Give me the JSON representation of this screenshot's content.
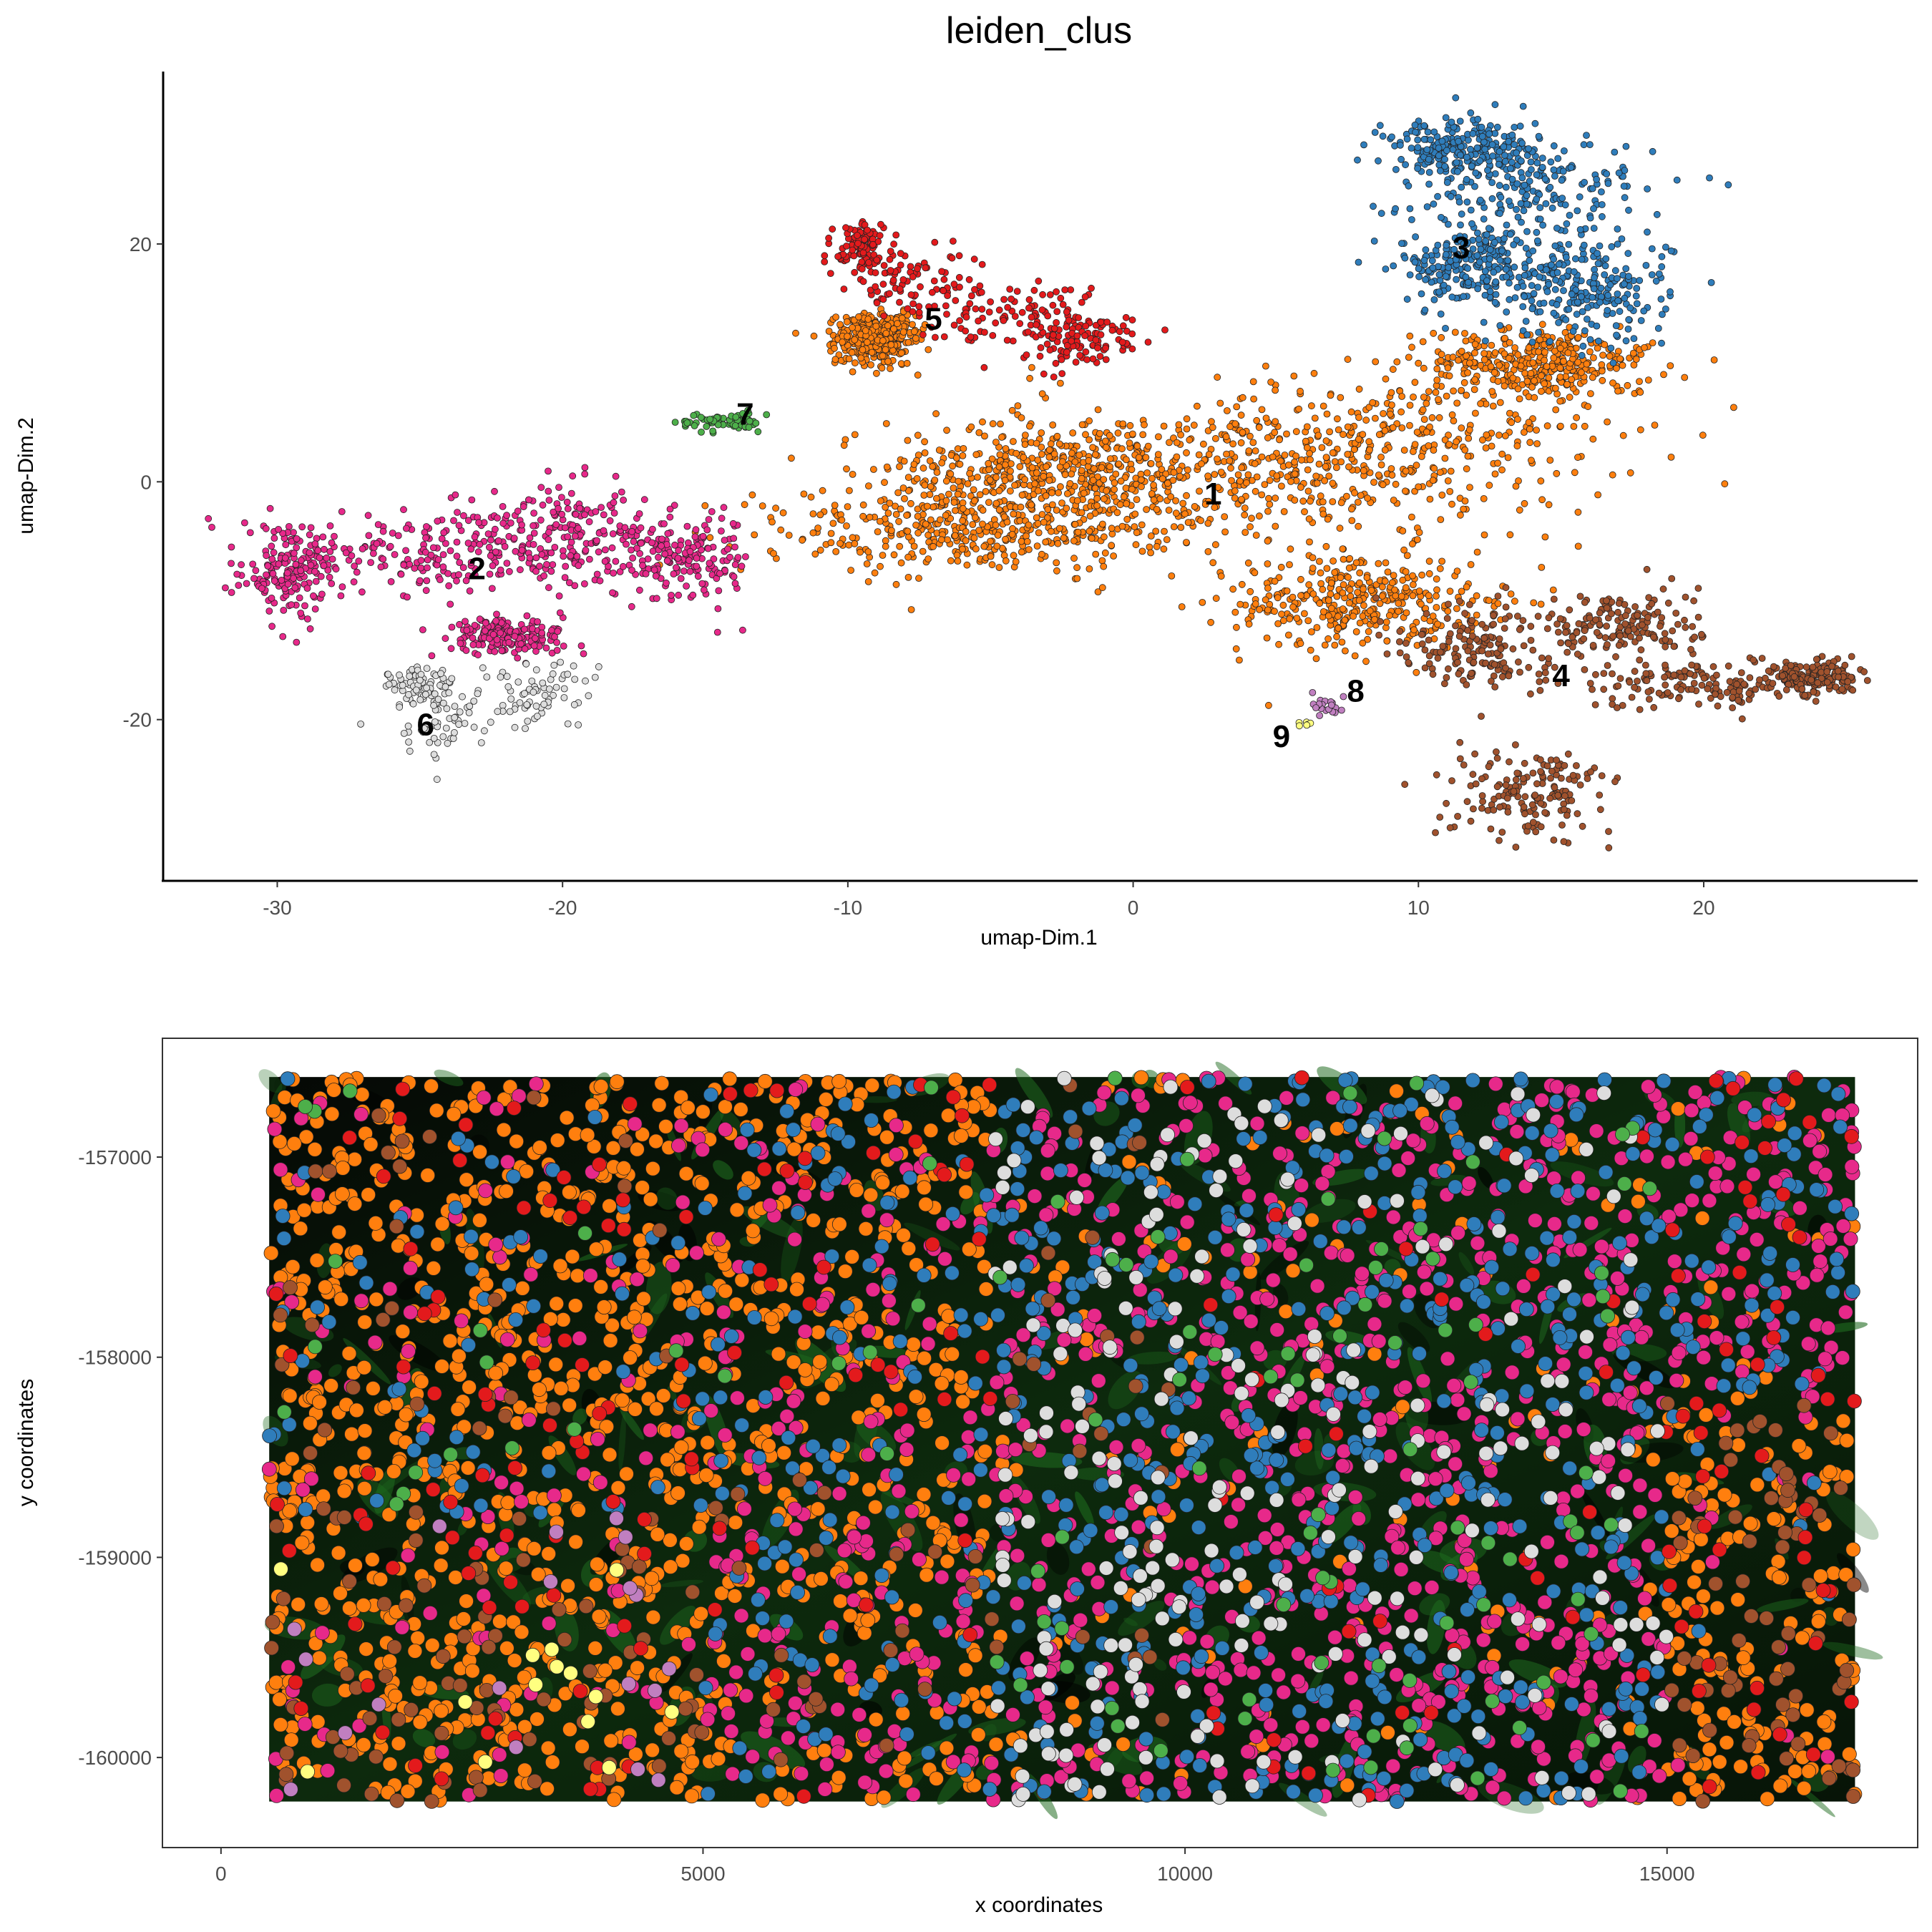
{
  "title": "leiden_clus",
  "colors": {
    "1": "#ff7f0e",
    "2": "#e7298a",
    "3": "#2f7dbb",
    "4": "#a0522d",
    "5": "#e31a1c",
    "6": "#dddddd",
    "7": "#4daf4a",
    "8": "#c07fc0",
    "9": "#ffff80"
  },
  "chart_data": [
    {
      "type": "scatter",
      "panel": "umap",
      "xlabel": "umap-Dim.1",
      "ylabel": "umap-Dim.2",
      "xlim": [
        -34,
        27.5
      ],
      "ylim": [
        -33.5,
        34.5
      ],
      "xticks": [
        -30,
        -20,
        -10,
        0,
        10,
        20
      ],
      "yticks": [
        -20,
        0,
        20
      ],
      "clusters": [
        {
          "id": "1",
          "label": "1",
          "label_pos": [
            2.8,
            -1.2
          ],
          "point_count": 2600,
          "blobs": [
            [
              2,
              0,
              7,
              5
            ],
            [
              9,
              3,
              6,
              4
            ],
            [
              -3,
              1,
              4,
              3
            ],
            [
              -6,
              -4,
              5,
              2.5
            ],
            [
              8,
              -10,
              3,
              3
            ],
            [
              14,
              10,
              3,
              2
            ],
            [
              -9,
              12,
              1,
              1.5
            ]
          ]
        },
        {
          "id": "2",
          "label": "2",
          "label_pos": [
            -23,
            -7.5
          ],
          "point_count": 900,
          "blobs": [
            [
              -29.5,
              -7.5,
              1.2,
              2.5
            ],
            [
              -24,
              -6,
              4,
              2.5
            ],
            [
              -20,
              -4,
              3,
              2.5
            ],
            [
              -16,
              -6.5,
              2,
              2.5
            ],
            [
              -22,
              -13,
              1.5,
              1
            ]
          ]
        },
        {
          "id": "3",
          "label": "3",
          "label_pos": [
            11.5,
            19.5
          ],
          "point_count": 900,
          "blobs": [
            [
              14,
              24,
              3,
              4
            ],
            [
              16,
              16,
              2,
              3
            ],
            [
              11.5,
              28,
              2,
              2
            ],
            [
              12,
              18,
              2,
              2
            ]
          ]
        },
        {
          "id": "4",
          "label": "4",
          "label_pos": [
            15,
            -16.5
          ],
          "point_count": 800,
          "blobs": [
            [
              12,
              -14,
              2,
              3
            ],
            [
              14,
              -26,
              2,
              2.5
            ],
            [
              20,
              -17,
              3,
              1.5
            ],
            [
              24,
              -16.5,
              1,
              1
            ],
            [
              17,
              -12,
              2,
              2
            ]
          ]
        },
        {
          "id": "5",
          "label": "5",
          "label_pos": [
            -7,
            13.5
          ],
          "point_count": 400,
          "blobs": [
            [
              -8,
              17,
              2,
              2
            ],
            [
              -4,
              14,
              2.5,
              2
            ],
            [
              -9.5,
              20,
              0.6,
              1.5
            ],
            [
              -2,
              12,
              1.5,
              1.5
            ]
          ]
        },
        {
          "id": "6",
          "label": "6",
          "label_pos": [
            -24.8,
            -20.6
          ],
          "point_count": 200,
          "blobs": [
            [
              -24,
              -20,
              1.5,
              3
            ],
            [
              -21,
              -18,
              1.5,
              2
            ],
            [
              -25,
              -17,
              0.8,
              1
            ]
          ]
        },
        {
          "id": "7",
          "label": "7",
          "label_pos": [
            -13.6,
            5.5
          ],
          "point_count": 70,
          "blobs": [
            [
              -14.5,
              5.0,
              1.0,
              0.6
            ]
          ]
        },
        {
          "id": "8",
          "label": "8",
          "label_pos": [
            7.8,
            -17.8
          ],
          "point_count": 20,
          "blobs": [
            [
              6.8,
              -18.8,
              0.5,
              0.6
            ]
          ]
        },
        {
          "id": "9",
          "label": "9",
          "label_pos": [
            5.2,
            -21.6
          ],
          "point_count": 6,
          "blobs": [
            [
              6.0,
              -20.4,
              0.25,
              0.2
            ]
          ]
        }
      ]
    },
    {
      "type": "scatter",
      "panel": "spatial",
      "xlabel": "x coordinates",
      "ylabel": "y coordinates",
      "xlim": [
        -600,
        17600
      ],
      "ylim": [
        -160450,
        -156410
      ],
      "xticks": [
        0,
        5000,
        10000,
        15000
      ],
      "yticks": [
        -157000,
        -158000,
        -159000,
        -160000
      ],
      "image_extent": {
        "x": [
          500,
          16950
        ],
        "y": [
          -160220,
          -156600
        ]
      },
      "point_count": 4200,
      "regions": [
        {
          "x": [
            500,
            5000
          ],
          "y": [
            -158800,
            -156600
          ],
          "mix": {
            "1": 0.65,
            "2": 0.1,
            "3": 0.1,
            "4": 0.05,
            "5": 0.07,
            "7": 0.03
          }
        },
        {
          "x": [
            500,
            5000
          ],
          "y": [
            -160220,
            -158800
          ],
          "mix": {
            "1": 0.6,
            "4": 0.2,
            "2": 0.08,
            "5": 0.06,
            "9": 0.03,
            "8": 0.03
          }
        },
        {
          "x": [
            5000,
            8000
          ],
          "y": [
            -158500,
            -156600
          ],
          "mix": {
            "1": 0.55,
            "2": 0.2,
            "3": 0.15,
            "5": 0.07,
            "7": 0.03
          }
        },
        {
          "x": [
            5000,
            8000
          ],
          "y": [
            -160220,
            -158500
          ],
          "mix": {
            "1": 0.45,
            "2": 0.3,
            "3": 0.15,
            "4": 0.07,
            "5": 0.03
          }
        },
        {
          "x": [
            8000,
            10000
          ],
          "y": [
            -160220,
            -156600
          ],
          "mix": {
            "2": 0.3,
            "3": 0.3,
            "6": 0.2,
            "1": 0.12,
            "4": 0.05,
            "7": 0.03
          }
        },
        {
          "x": [
            10000,
            15000
          ],
          "y": [
            -160220,
            -156600
          ],
          "mix": {
            "2": 0.45,
            "3": 0.3,
            "6": 0.12,
            "1": 0.07,
            "7": 0.04,
            "5": 0.02
          }
        },
        {
          "x": [
            15000,
            16950
          ],
          "y": [
            -158200,
            -156600
          ],
          "mix": {
            "2": 0.5,
            "3": 0.3,
            "1": 0.1,
            "5": 0.1
          }
        },
        {
          "x": [
            15000,
            16950
          ],
          "y": [
            -160220,
            -158200
          ],
          "mix": {
            "1": 0.55,
            "4": 0.25,
            "5": 0.12,
            "2": 0.05,
            "3": 0.03
          }
        }
      ]
    }
  ]
}
